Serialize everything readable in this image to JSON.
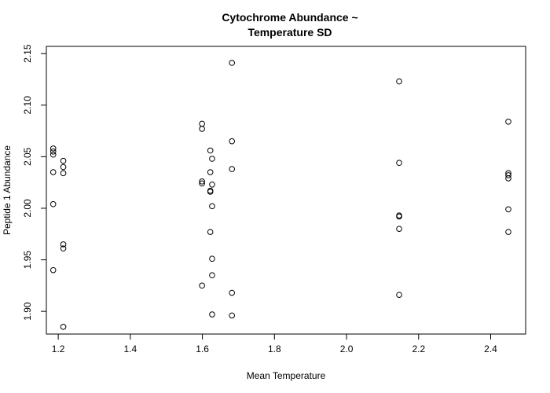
{
  "chart_data": {
    "type": "scatter",
    "title_lines": [
      "Cytochrome Abundance ~",
      "Temperature SD"
    ],
    "xlabel": "Mean Temperature",
    "ylabel": "Peptide 1 Abundance",
    "xlim": [
      1.167,
      2.497
    ],
    "ylim": [
      1.878,
      2.157
    ],
    "x_ticks": [
      "1.2",
      "1.4",
      "1.6",
      "1.8",
      "2.0",
      "2.2",
      "2.4"
    ],
    "y_ticks": [
      "1.90",
      "1.95",
      "2.00",
      "2.05",
      "2.10",
      "2.15"
    ],
    "grid": false,
    "marker": "open-circle",
    "points": [
      {
        "x": 1.186,
        "y": 2.058
      },
      {
        "x": 1.186,
        "y": 2.055
      },
      {
        "x": 1.186,
        "y": 2.052
      },
      {
        "x": 1.186,
        "y": 2.035
      },
      {
        "x": 1.186,
        "y": 2.004
      },
      {
        "x": 1.186,
        "y": 1.94
      },
      {
        "x": 1.214,
        "y": 2.046
      },
      {
        "x": 1.214,
        "y": 2.04
      },
      {
        "x": 1.214,
        "y": 2.034
      },
      {
        "x": 1.214,
        "y": 1.965
      },
      {
        "x": 1.214,
        "y": 1.961
      },
      {
        "x": 1.214,
        "y": 1.885
      },
      {
        "x": 1.599,
        "y": 2.082
      },
      {
        "x": 1.599,
        "y": 2.077
      },
      {
        "x": 1.599,
        "y": 2.026
      },
      {
        "x": 1.599,
        "y": 2.024
      },
      {
        "x": 1.599,
        "y": 1.925
      },
      {
        "x": 1.622,
        "y": 2.056
      },
      {
        "x": 1.622,
        "y": 2.035
      },
      {
        "x": 1.622,
        "y": 2.017
      },
      {
        "x": 1.622,
        "y": 2.016
      },
      {
        "x": 1.622,
        "y": 1.977
      },
      {
        "x": 1.627,
        "y": 2.048
      },
      {
        "x": 1.627,
        "y": 2.023
      },
      {
        "x": 1.627,
        "y": 2.002
      },
      {
        "x": 1.627,
        "y": 1.951
      },
      {
        "x": 1.627,
        "y": 1.935
      },
      {
        "x": 1.627,
        "y": 1.897
      },
      {
        "x": 1.682,
        "y": 2.141
      },
      {
        "x": 1.682,
        "y": 2.065
      },
      {
        "x": 1.682,
        "y": 2.038
      },
      {
        "x": 1.682,
        "y": 1.918
      },
      {
        "x": 1.682,
        "y": 1.896
      },
      {
        "x": 2.146,
        "y": 2.123
      },
      {
        "x": 2.146,
        "y": 2.044
      },
      {
        "x": 2.146,
        "y": 1.993
      },
      {
        "x": 2.146,
        "y": 1.992
      },
      {
        "x": 2.146,
        "y": 1.98
      },
      {
        "x": 2.146,
        "y": 1.916
      },
      {
        "x": 2.449,
        "y": 2.084
      },
      {
        "x": 2.449,
        "y": 2.034
      },
      {
        "x": 2.449,
        "y": 2.032
      },
      {
        "x": 2.449,
        "y": 2.029
      },
      {
        "x": 2.449,
        "y": 1.999
      },
      {
        "x": 2.449,
        "y": 1.977
      }
    ]
  }
}
